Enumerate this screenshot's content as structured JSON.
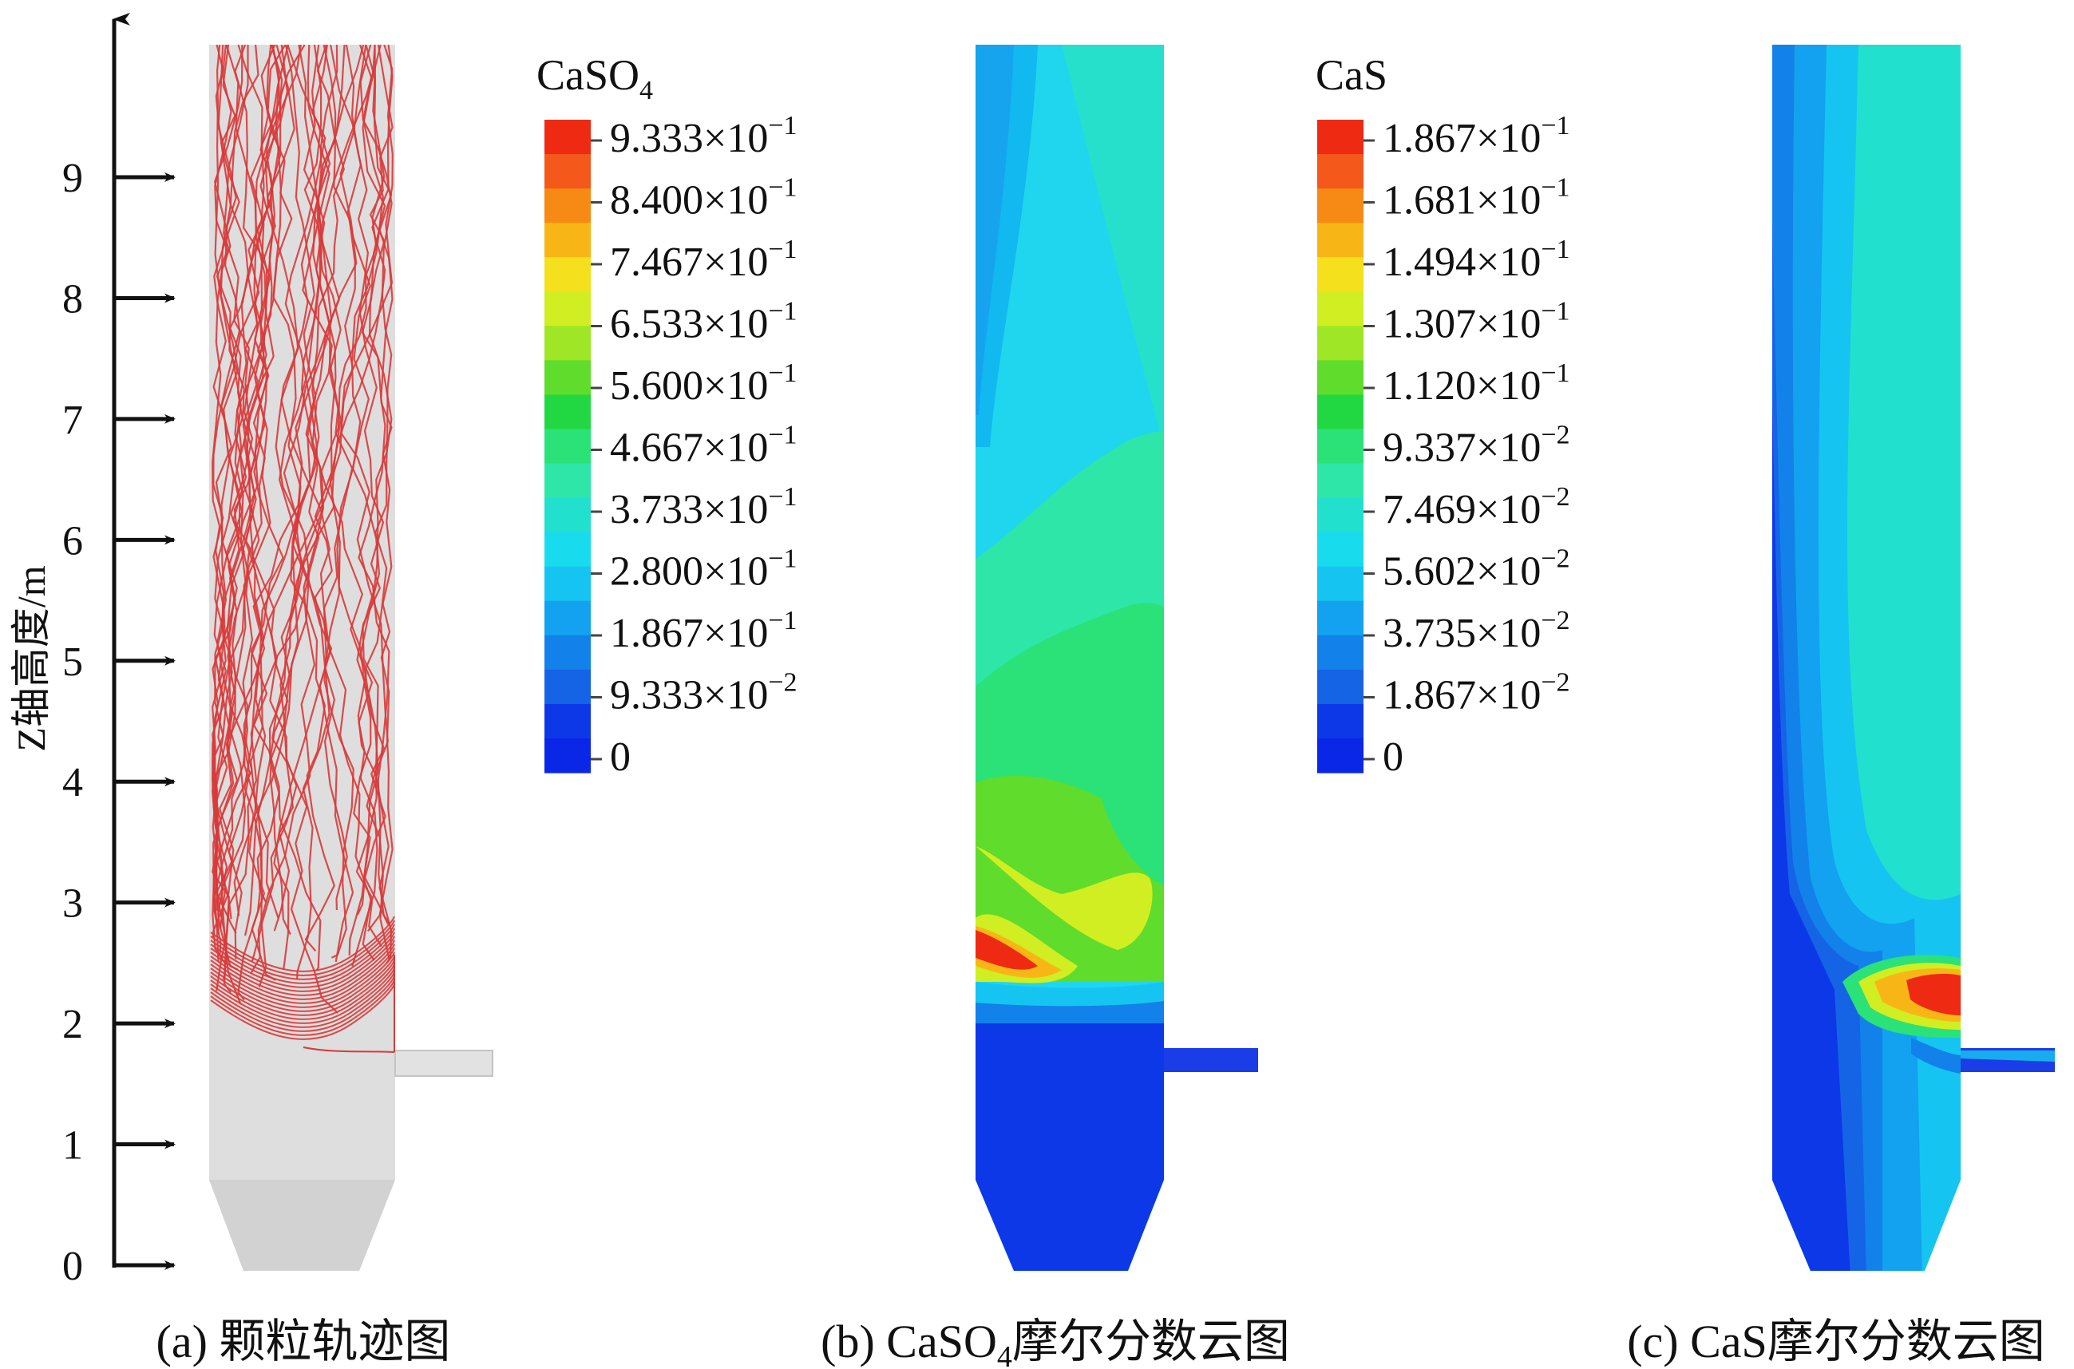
{
  "axis": {
    "label": "Z轴高度/m",
    "ticks": [
      "0",
      "1",
      "2",
      "3",
      "4",
      "5",
      "6",
      "7",
      "8",
      "9"
    ],
    "max_value": 10
  },
  "panels": [
    {
      "id": "a",
      "caption_prefix": "(a) ",
      "caption_main": "颗粒轨迹图",
      "caption_sub": "",
      "caption_suffix": ""
    },
    {
      "id": "b",
      "caption_prefix": "(b) ",
      "caption_main": "CaSO",
      "caption_sub": "4",
      "caption_suffix": "摩尔分数云图"
    },
    {
      "id": "c",
      "caption_prefix": "(c) ",
      "caption_main": "CaS",
      "caption_sub": "",
      "caption_suffix": "摩尔分数云图"
    }
  ],
  "legends": [
    {
      "title_main": "CaSO",
      "title_sub": "4",
      "labels": [
        {
          "m": "9.333×10",
          "e": "−1"
        },
        {
          "m": "8.400×10",
          "e": "−1"
        },
        {
          "m": "7.467×10",
          "e": "−1"
        },
        {
          "m": "6.533×10",
          "e": "−1"
        },
        {
          "m": "5.600×10",
          "e": "−1"
        },
        {
          "m": "4.667×10",
          "e": "−1"
        },
        {
          "m": "3.733×10",
          "e": "−1"
        },
        {
          "m": "2.800×10",
          "e": "−1"
        },
        {
          "m": "1.867×10",
          "e": "−1"
        },
        {
          "m": "9.333×10",
          "e": "−2"
        },
        {
          "m": "0",
          "e": ""
        }
      ]
    },
    {
      "title_main": "CaS",
      "title_sub": "",
      "labels": [
        {
          "m": "1.867×10",
          "e": "−1"
        },
        {
          "m": "1.681×10",
          "e": "−1"
        },
        {
          "m": "1.494×10",
          "e": "−1"
        },
        {
          "m": "1.307×10",
          "e": "−1"
        },
        {
          "m": "1.120×10",
          "e": "−1"
        },
        {
          "m": "9.337×10",
          "e": "−2"
        },
        {
          "m": "7.469×10",
          "e": "−2"
        },
        {
          "m": "5.602×10",
          "e": "−2"
        },
        {
          "m": "3.735×10",
          "e": "−2"
        },
        {
          "m": "1.867×10",
          "e": "−2"
        },
        {
          "m": "0",
          "e": ""
        }
      ]
    }
  ],
  "colors": {
    "scale": [
      "#ee2a12",
      "#f4581b",
      "#f68a14",
      "#f8b616",
      "#f4e01c",
      "#d0ee22",
      "#9ee626",
      "#60dc2c",
      "#22d842",
      "#2ae278",
      "#2ee6a8",
      "#22e0ce",
      "#18dcee",
      "#16c4f2",
      "#12a2ef",
      "#1282ea",
      "#1664e6",
      "#0d38e8",
      "#0a26e6"
    ],
    "vessel": "#dedede",
    "trajectory": "#d83a3a",
    "low": "#0d3ae8"
  }
}
